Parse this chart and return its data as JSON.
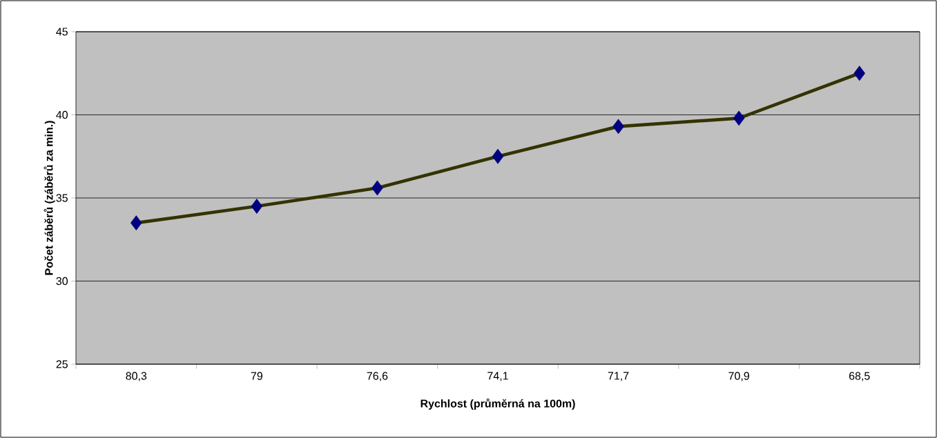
{
  "chart_data": {
    "type": "line",
    "xlabel": "Rychlost (průměrná na 100m)",
    "ylabel": "Počet záběrů (záběrů za min.)",
    "categories": [
      "80,3",
      "79",
      "76,6",
      "74,1",
      "71,7",
      "70,9",
      "68,5"
    ],
    "series": [
      {
        "color": "#333300",
        "colors": [
          "#000080",
          "#000080",
          "#000080",
          "#000080",
          "#000080",
          "#000080",
          "#000080"
        ],
        "values": [
          33.5,
          34.5,
          35.6,
          37.5,
          39.3,
          39.8,
          42.5
        ]
      }
    ],
    "ylim": [
      25,
      45
    ],
    "yticks": [
      25,
      30,
      35,
      40,
      45
    ],
    "grid": "y",
    "legend": false,
    "marker": "diamond",
    "line_style": "solid"
  }
}
